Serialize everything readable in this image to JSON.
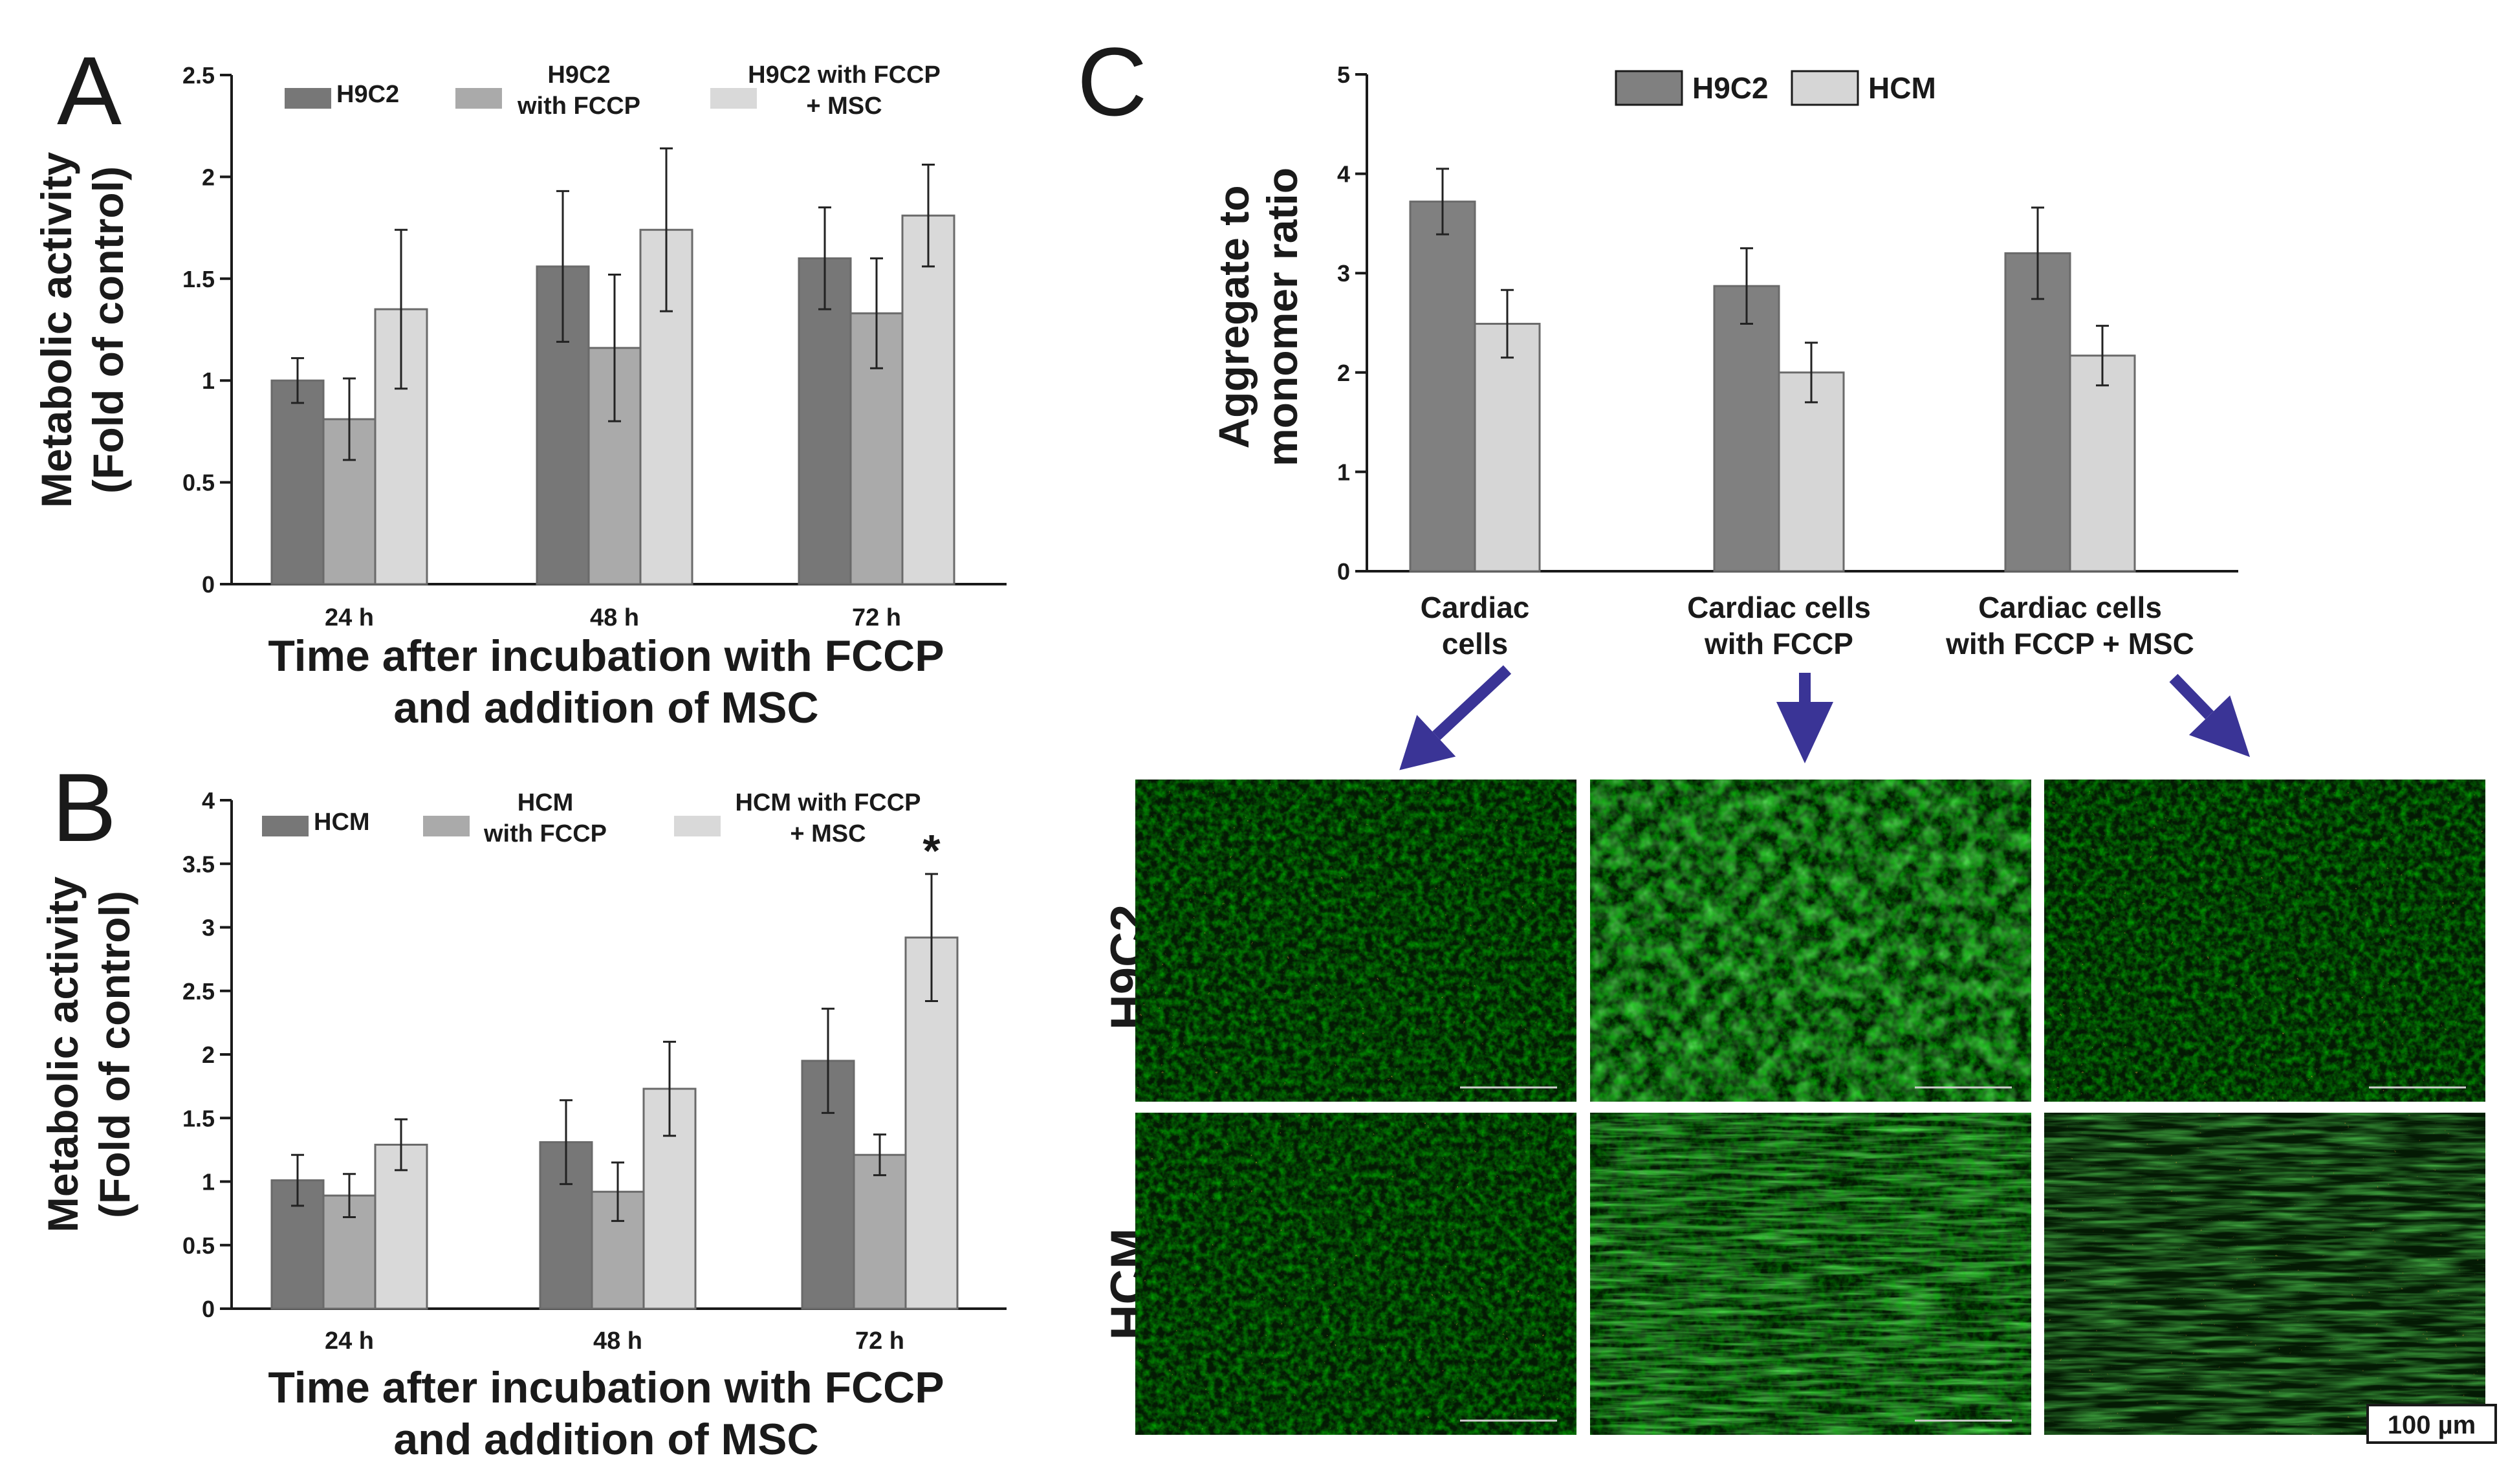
{
  "panels": {
    "a": "A",
    "b": "B",
    "c": "C"
  },
  "colors": {
    "series1": "#777777",
    "series2": "#aaaaaa",
    "series3": "#d9d9d9",
    "h9c2_c": "#808080",
    "hcm_c": "#d6d6d6",
    "arrow": "#3a3496"
  },
  "chart_data": [
    {
      "id": "A",
      "type": "bar",
      "title": "",
      "categories": [
        "24 h",
        "48 h",
        "72 h"
      ],
      "xlabel": [
        "Time after incubation with FCCP",
        "and addition of MSC"
      ],
      "ylabel": [
        "Metabolic activity",
        "(Fold of control)"
      ],
      "ylim": [
        0,
        2.5
      ],
      "yticks": [
        0,
        0.5,
        1,
        1.5,
        2,
        2.5
      ],
      "ytick_labels": [
        "0",
        "0.5",
        "1",
        "1.5",
        "2",
        "2.5"
      ],
      "legend_position": "top",
      "series": [
        {
          "name": [
            "H9C2"
          ],
          "values": [
            1.0,
            1.56,
            1.6
          ],
          "errors": [
            0.11,
            0.37,
            0.25
          ]
        },
        {
          "name": [
            "H9C2",
            "with FCCP"
          ],
          "values": [
            0.81,
            1.16,
            1.33
          ],
          "errors": [
            0.2,
            0.36,
            0.27
          ]
        },
        {
          "name": [
            "H9C2 with FCCP",
            "+ MSC"
          ],
          "values": [
            1.35,
            1.74,
            1.81
          ],
          "errors": [
            0.39,
            0.4,
            0.25
          ]
        }
      ],
      "annotations": []
    },
    {
      "id": "B",
      "type": "bar",
      "title": "",
      "categories": [
        "24 h",
        "48 h",
        "72 h"
      ],
      "xlabel": [
        "Time after incubation with FCCP",
        "and addition of MSC"
      ],
      "ylabel": [
        "Metabolic activity",
        "(Fold of control)"
      ],
      "ylim": [
        0,
        4
      ],
      "yticks": [
        0,
        0.5,
        1,
        1.5,
        2,
        2.5,
        3,
        3.5,
        4
      ],
      "ytick_labels": [
        "0",
        "0.5",
        "1",
        "1.5",
        "2",
        "2.5",
        "3",
        "3.5",
        "4"
      ],
      "legend_position": "top",
      "series": [
        {
          "name": [
            "HCM"
          ],
          "values": [
            1.01,
            1.31,
            1.95
          ],
          "errors": [
            0.2,
            0.33,
            0.41
          ]
        },
        {
          "name": [
            "HCM",
            "with FCCP"
          ],
          "values": [
            0.89,
            0.92,
            1.21
          ],
          "errors": [
            0.17,
            0.23,
            0.16
          ]
        },
        {
          "name": [
            "HCM with FCCP",
            "+ MSC"
          ],
          "values": [
            1.29,
            1.73,
            2.92
          ],
          "errors": [
            0.2,
            0.37,
            0.5
          ]
        }
      ],
      "annotations": [
        {
          "text": "*",
          "category": 2,
          "series": 2
        }
      ]
    },
    {
      "id": "C",
      "type": "bar",
      "title": "",
      "categories": [
        [
          "Cardiac",
          "cells"
        ],
        [
          "Cardiac cells",
          "with FCCP"
        ],
        [
          "Cardiac cells",
          "with FCCP + MSC"
        ]
      ],
      "xlabel": "",
      "ylabel": [
        "Aggregate to",
        "monomer ratio"
      ],
      "ylim": [
        0,
        5
      ],
      "yticks": [
        0,
        1,
        2,
        3,
        4,
        5
      ],
      "ytick_labels": [
        "0",
        "1",
        "2",
        "3",
        "4",
        "5"
      ],
      "legend_position": "top",
      "series": [
        {
          "name": [
            "H9C2"
          ],
          "values": [
            3.72,
            2.87,
            3.2
          ],
          "errors": [
            0.33,
            0.38,
            0.46
          ]
        },
        {
          "name": [
            "HCM"
          ],
          "values": [
            2.49,
            2.0,
            2.17
          ],
          "errors": [
            0.34,
            0.3,
            0.3
          ]
        }
      ],
      "annotations": []
    }
  ],
  "micrographs": {
    "rows": [
      "H9C2",
      "HCM"
    ],
    "scale_bar": "100 µm"
  }
}
